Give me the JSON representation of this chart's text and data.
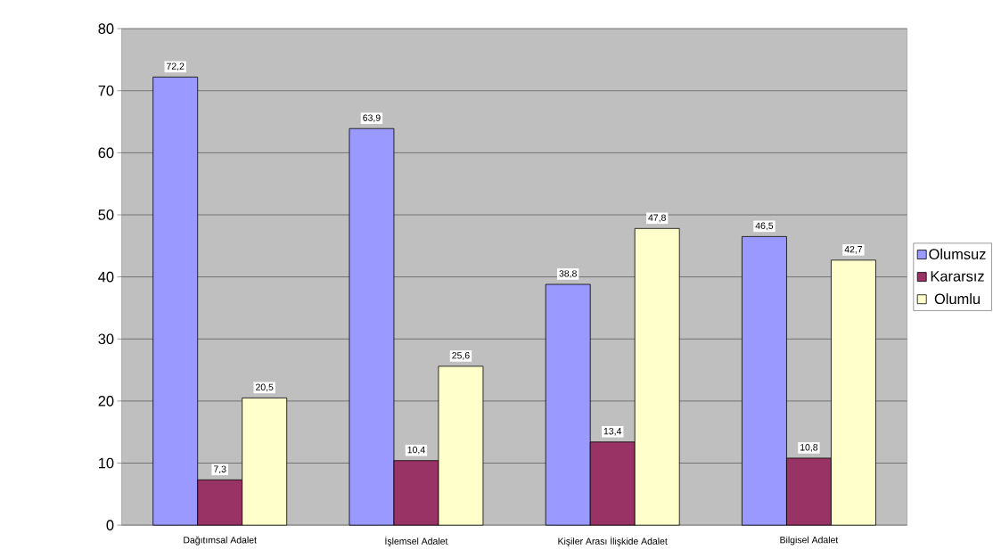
{
  "chart_data": {
    "type": "bar",
    "categories": [
      "Dağıtımsal Adalet",
      "İşlemsel Adalet",
      "Kişiler Arası İlişkide Adalet",
      "Bilgisel Adalet"
    ],
    "series": [
      {
        "name": "Olumsuz",
        "color": "#9999ff",
        "values": [
          72.2,
          63.9,
          38.8,
          46.5
        ],
        "value_labels": [
          "72,2",
          "63,9",
          "38,8",
          "46,5"
        ]
      },
      {
        "name": "Kararsız",
        "color": "#993366",
        "values": [
          7.3,
          10.4,
          13.4,
          10.8
        ],
        "value_labels": [
          "7,3",
          "10,4",
          "13,4",
          "10,8"
        ]
      },
      {
        "name": "Olumlu",
        "color": "#ffffcc",
        "values": [
          20.5,
          25.6,
          47.8,
          42.7
        ],
        "value_labels": [
          "20,5",
          "25,6",
          "47,8",
          "42,7"
        ]
      }
    ],
    "ylim": [
      0,
      80
    ],
    "yticks": [
      0,
      10,
      20,
      30,
      40,
      50,
      60,
      70,
      80
    ],
    "grid": "y",
    "legend": "right"
  }
}
